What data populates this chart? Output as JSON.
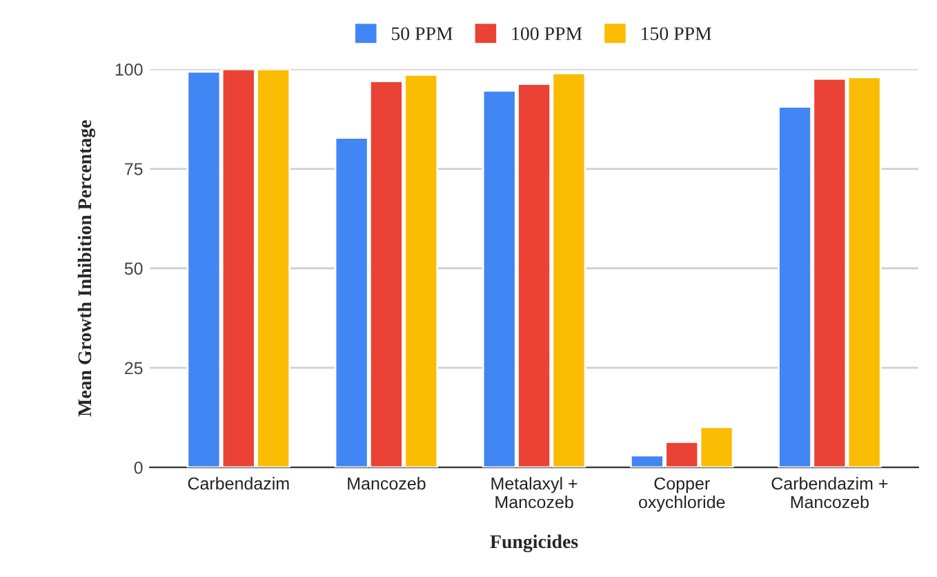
{
  "chart_data": {
    "type": "bar",
    "xlabel": "Fungicides",
    "ylabel": "Mean Growth Inhibition Percentage",
    "categories": [
      "Carbendazim",
      "Mancozeb",
      "Metalaxyl +\nMancozeb",
      "Copper\noxychloride",
      "Carbendazim +\nMancozeb"
    ],
    "series": [
      {
        "name": "50 PPM",
        "color": "#4285f4",
        "values": [
          99.4,
          82.8,
          94.6,
          3.0,
          90.6
        ]
      },
      {
        "name": "100 PPM",
        "color": "#ea4335",
        "values": [
          100,
          97.0,
          96.3,
          6.4,
          97.6
        ]
      },
      {
        "name": "150 PPM",
        "color": "#fbbc04",
        "values": [
          100,
          98.6,
          99.0,
          10.1,
          98.0
        ]
      }
    ],
    "ylim": [
      0,
      100
    ],
    "yticks": [
      0,
      25,
      50,
      75,
      100
    ],
    "grid": "y",
    "legend": "top"
  }
}
